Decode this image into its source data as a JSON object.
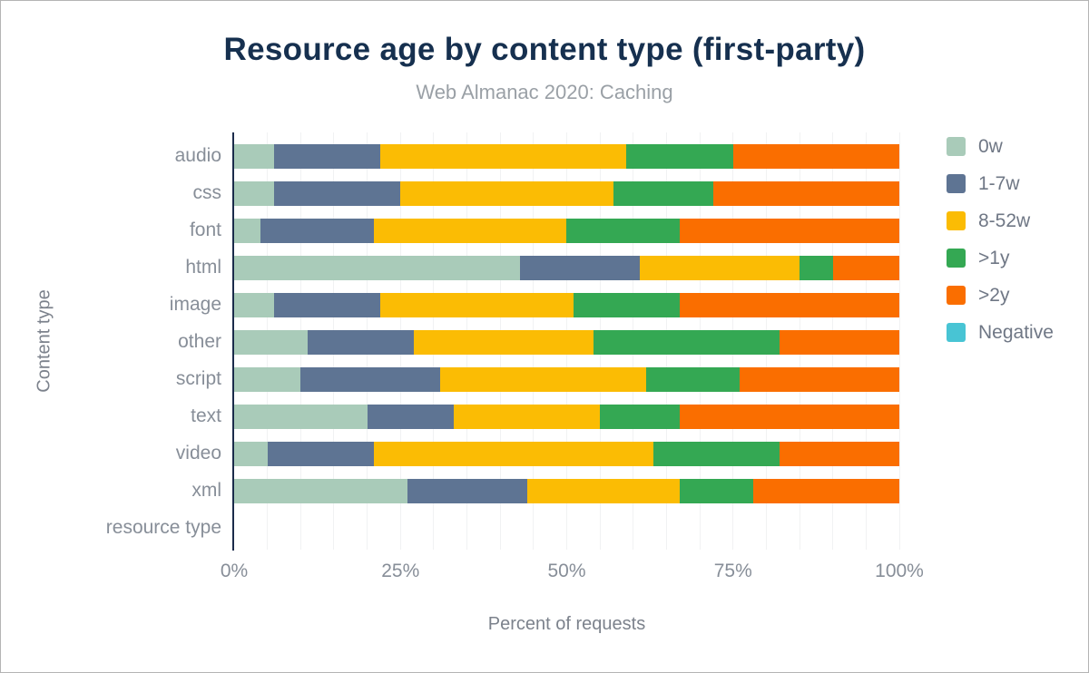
{
  "chart_data": {
    "type": "bar",
    "orientation": "horizontal-stacked",
    "title": "Resource age by content type (first-party)",
    "subtitle": "Web Almanac 2020: Caching",
    "xlabel": "Percent of requests",
    "ylabel": "Content type",
    "xlim": [
      0,
      100
    ],
    "xticks": [
      {
        "value": 0,
        "label": "0%"
      },
      {
        "value": 25,
        "label": "25%"
      },
      {
        "value": 50,
        "label": "50%"
      },
      {
        "value": 75,
        "label": "75%"
      },
      {
        "value": 100,
        "label": "100%"
      }
    ],
    "grid": "vertical lines every 5%",
    "legend_position": "right",
    "categories": [
      "audio",
      "css",
      "font",
      "html",
      "image",
      "other",
      "script",
      "text",
      "video",
      "xml",
      "resource type"
    ],
    "series": [
      {
        "name": "0w",
        "color": "#a9cbb9",
        "values": [
          6,
          6,
          4,
          43,
          6,
          11,
          10,
          20,
          5,
          26,
          0
        ]
      },
      {
        "name": "1-7w",
        "color": "#5e7493",
        "values": [
          16,
          19,
          17,
          18,
          16,
          16,
          21,
          13,
          16,
          18,
          0
        ]
      },
      {
        "name": "8-52w",
        "color": "#fbbc04",
        "values": [
          37,
          32,
          29,
          24,
          29,
          27,
          31,
          22,
          42,
          23,
          0
        ]
      },
      {
        "name": ">1y",
        "color": "#34a853",
        "values": [
          16,
          15,
          17,
          5,
          16,
          28,
          14,
          12,
          19,
          11,
          0
        ]
      },
      {
        "name": ">2y",
        "color": "#fa6e00",
        "values": [
          25,
          28,
          33,
          10,
          33,
          18,
          24,
          33,
          18,
          22,
          0
        ]
      },
      {
        "name": "Negative",
        "color": "#48c4d4",
        "values": [
          0,
          0,
          0,
          0,
          0,
          0,
          0,
          0,
          0,
          0,
          0
        ]
      }
    ]
  }
}
